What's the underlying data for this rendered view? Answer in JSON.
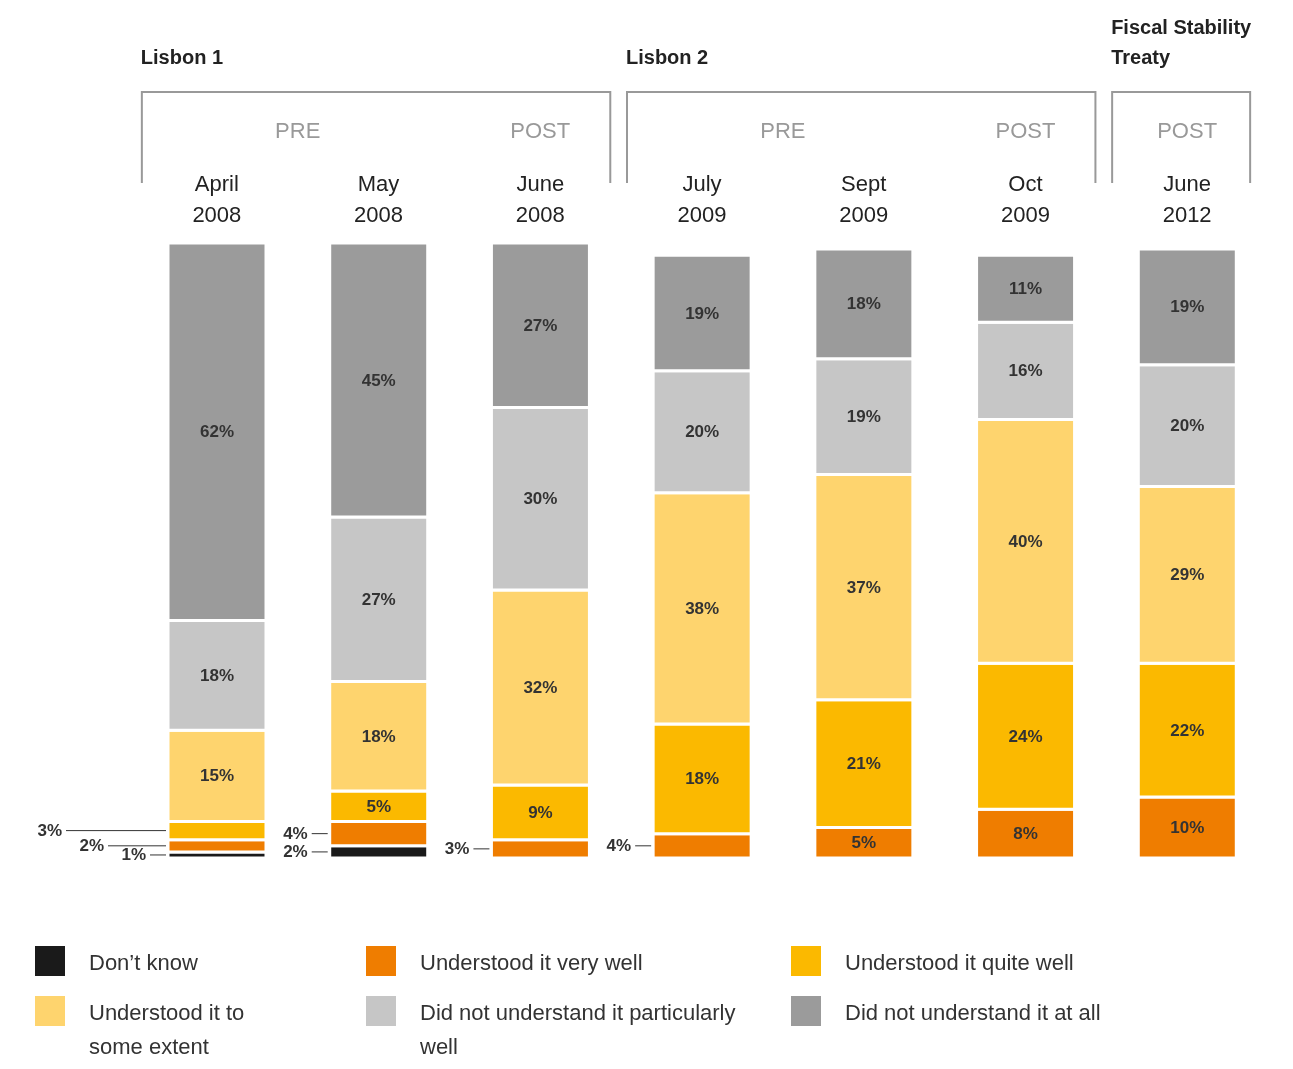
{
  "chart_data": {
    "type": "bar",
    "stacked": true,
    "legend": "bottom",
    "categories": [
      "April 2008",
      "May 2008",
      "June 2008",
      "July 2009",
      "Sept 2009",
      "Oct 2009",
      "June 2012"
    ],
    "series": [
      {
        "name": "Don’t know",
        "color": "#1a1a1a",
        "values": [
          1,
          2,
          null,
          null,
          null,
          null,
          null
        ],
        "value_labels": [
          "1%",
          "2%",
          null,
          null,
          null,
          null,
          null
        ]
      },
      {
        "name": "Understood it very well",
        "color": "#ef7d00",
        "values": [
          2,
          4,
          3,
          4,
          5,
          8,
          10
        ],
        "value_labels": [
          "2%",
          "4%",
          "3%",
          "4%",
          "5%",
          "8%",
          "10%"
        ]
      },
      {
        "name": "Understood it quite well",
        "color": "#fbb900",
        "values": [
          3,
          5,
          9,
          18,
          21,
          24,
          22
        ],
        "value_labels": [
          "3%",
          "5%",
          "9%",
          "18%",
          "21%",
          "24%",
          "22%"
        ]
      },
      {
        "name": "Understood it to some extent",
        "color": "#fed46e",
        "values": [
          15,
          18,
          32,
          38,
          37,
          40,
          29
        ],
        "value_labels": [
          "15%",
          "18%",
          "32%",
          "38%",
          "37%",
          "40%",
          "29%"
        ]
      },
      {
        "name": "Did not understand it particularly well",
        "color": "#c6c6c6",
        "values": [
          18,
          27,
          30,
          20,
          19,
          16,
          20
        ],
        "value_labels": [
          "18%",
          "27%",
          "30%",
          "20%",
          "19%",
          "16%",
          "20%"
        ]
      },
      {
        "name": "Did not understand it at all",
        "color": "#9b9b9b",
        "values": [
          62,
          45,
          27,
          19,
          18,
          11,
          19
        ],
        "value_labels": [
          "62%",
          "45%",
          "27%",
          "19%",
          "18%",
          "11%",
          "19%"
        ]
      }
    ],
    "annotations": [
      "Lisbon 1",
      "PRE",
      "POST",
      "Lisbon 2",
      "PRE",
      "POST",
      "Fiscal Stability Treaty",
      "POST"
    ]
  }
}
